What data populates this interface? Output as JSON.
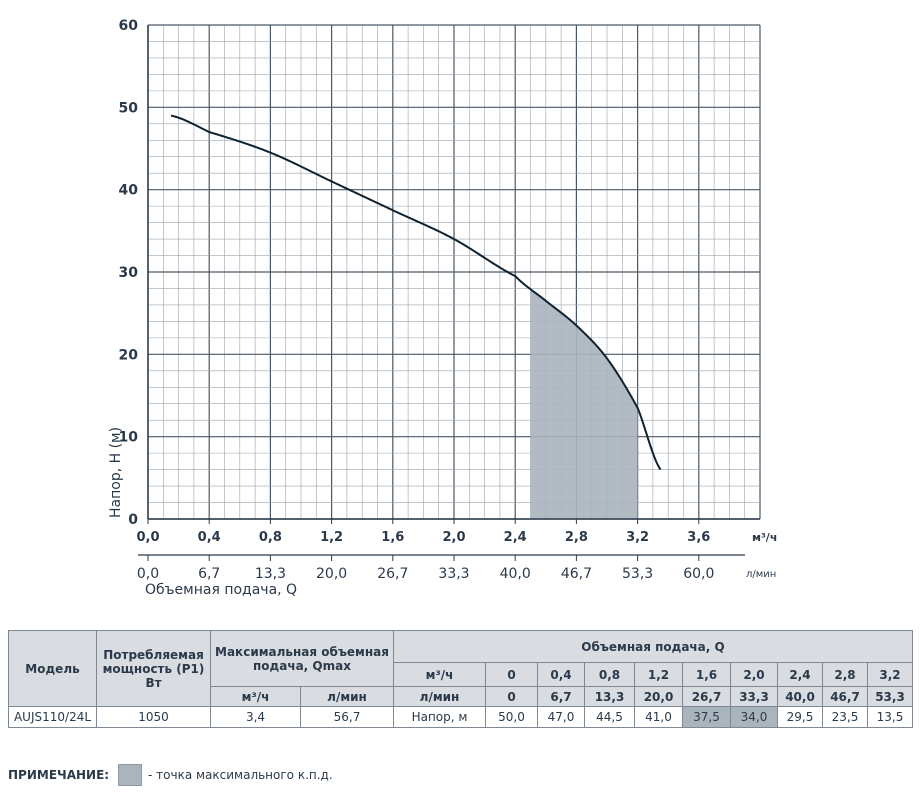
{
  "chart_data": {
    "type": "line",
    "ylabel": "Напор, Н (м)",
    "xlabel": "Объемная подача, Q",
    "x_unit": "м³/ч",
    "x2_unit": "л/мин",
    "ylim": [
      0,
      60
    ],
    "xlim": [
      0,
      4.0
    ],
    "yticks": [
      "0",
      "10",
      "20",
      "30",
      "40",
      "50",
      "60"
    ],
    "xticks": [
      "0,0",
      "0,4",
      "0,8",
      "1,2",
      "1,6",
      "2,0",
      "2,4",
      "2,8",
      "3,2",
      "3,6"
    ],
    "xticks2": [
      "0,0",
      "6,7",
      "13,3",
      "20,0",
      "26,7",
      "33,3",
      "40,0",
      "46,7",
      "53,3",
      "60,0"
    ],
    "grid": true,
    "series": [
      {
        "x": [
          0.15,
          0.4,
          0.8,
          1.2,
          1.6,
          2.0,
          2.4,
          2.6,
          2.8,
          3.0,
          3.2,
          3.35
        ],
        "y": [
          49.0,
          47.0,
          44.5,
          41.0,
          37.5,
          34.0,
          29.5,
          26.5,
          23.5,
          19.5,
          13.5,
          6.0
        ]
      }
    ],
    "shaded_region": {
      "x_from": 2.5,
      "x_to": 3.2,
      "color": "#aab4bd"
    }
  },
  "table": {
    "model_header": "Модель",
    "power_header": "Потребляемая мощность (Р1) Вт",
    "qmax_header": "Максимальная объемная подача, Qmax",
    "qmax_unit_m3": "м³/ч",
    "qmax_unit_lmin": "л/мин",
    "flow_header": "Объемная подача, Q",
    "row_m3_label": "м³/ч",
    "row_lmin_label": "л/мин",
    "head_label": "Напор, м",
    "flow_m3": [
      "0",
      "0,4",
      "0,8",
      "1,2",
      "1,6",
      "2,0",
      "2,4",
      "2,8",
      "3,2"
    ],
    "flow_lmin": [
      "0",
      "6,7",
      "13,3",
      "20,0",
      "26,7",
      "33,3",
      "40,0",
      "46,7",
      "53,3"
    ],
    "model": "AUJS110/24L",
    "power": "1050",
    "qmax_m3": "3,4",
    "qmax_lmin": "56,7",
    "head": [
      "50,0",
      "47,0",
      "44,5",
      "41,0",
      "37,5",
      "34,0",
      "29,5",
      "23,5",
      "13,5"
    ],
    "shaded_color": "#aab4bd"
  },
  "note": {
    "label": "ПРИМЕЧАНИЕ:",
    "text": "- точка максимального  к.п.д."
  }
}
